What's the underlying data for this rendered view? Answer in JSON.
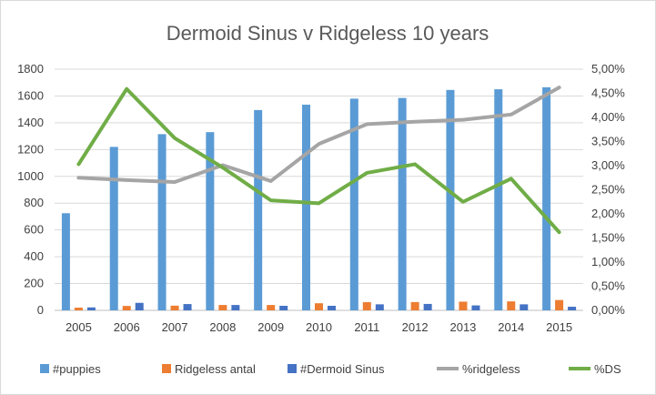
{
  "chart_data": {
    "type": "bar",
    "title": "Dermoid Sinus v Ridgeless  10 years",
    "categories": [
      "2005",
      "2006",
      "2007",
      "2008",
      "2009",
      "2010",
      "2011",
      "2012",
      "2013",
      "2014",
      "2015"
    ],
    "y_left": {
      "min": 0,
      "max": 1800,
      "step": 200,
      "ticks": [
        "0",
        "200",
        "400",
        "600",
        "800",
        "1000",
        "1200",
        "1400",
        "1600",
        "1800"
      ]
    },
    "y_right": {
      "min": 0,
      "max": 5,
      "step": 0.5,
      "ticks": [
        "0,00%",
        "0,50%",
        "1,00%",
        "1,50%",
        "2,00%",
        "2,50%",
        "3,00%",
        "3,50%",
        "4,00%",
        "4,50%",
        "5,00%"
      ]
    },
    "grid": true,
    "legend_position": "bottom",
    "series": [
      {
        "name": "#puppies",
        "type": "bar",
        "axis": "left",
        "color": "#5b9bd5",
        "values": [
          725,
          1220,
          1315,
          1330,
          1495,
          1535,
          1580,
          1585,
          1645,
          1650,
          1665
        ]
      },
      {
        "name": "Ridgeless antal",
        "type": "bar",
        "axis": "left",
        "color": "#ed7d31",
        "values": [
          20,
          33,
          35,
          40,
          40,
          53,
          61,
          62,
          65,
          67,
          77
        ]
      },
      {
        "name": "#Dermoid Sinus",
        "type": "bar",
        "axis": "left",
        "color": "#4472c4",
        "values": [
          22,
          56,
          47,
          40,
          34,
          34,
          45,
          48,
          37,
          45,
          27
        ]
      },
      {
        "name": "%ridgeless",
        "type": "line",
        "axis": "right",
        "color": "#a5a5a5",
        "values": [
          2.75,
          2.7,
          2.66,
          3.01,
          2.68,
          3.45,
          3.86,
          3.91,
          3.95,
          4.06,
          4.62
        ]
      },
      {
        "name": "%DS",
        "type": "line",
        "axis": "right",
        "color": "#70ad47",
        "values": [
          3.03,
          4.59,
          3.57,
          2.96,
          2.28,
          2.22,
          2.85,
          3.03,
          2.25,
          2.73,
          1.62
        ]
      }
    ]
  }
}
